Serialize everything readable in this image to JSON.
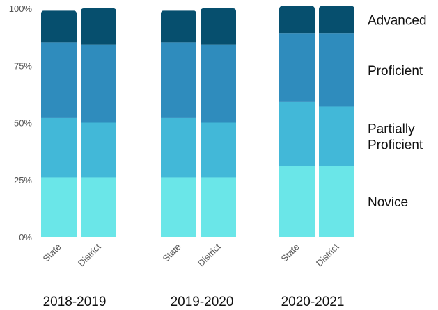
{
  "chart_data": {
    "type": "bar",
    "stacked": true,
    "y_axis": {
      "ylim": [
        0,
        100
      ],
      "ticks": [
        "0%",
        "25%",
        "50%",
        "75%",
        "100%"
      ],
      "grid": false
    },
    "categories": [
      "State",
      "District",
      "State",
      "District",
      "State",
      "District"
    ],
    "groups": [
      "2018-2019",
      "2019-2020",
      "2020-2021"
    ],
    "legend_position": "right",
    "series": [
      {
        "name": "Novice",
        "color": "#6ae6e8",
        "values": [
          26,
          26,
          26,
          26,
          31,
          31
        ]
      },
      {
        "name": "Partially Proficient",
        "color": "#42b8d8",
        "values": [
          26,
          24,
          26,
          24,
          28,
          26
        ]
      },
      {
        "name": "Proficient",
        "color": "#2f8cbd",
        "values": [
          33,
          34,
          33,
          34,
          30,
          32
        ]
      },
      {
        "name": "Advanced",
        "color": "#064f6e",
        "values": [
          14,
          16,
          14,
          16,
          12,
          12
        ]
      }
    ]
  }
}
